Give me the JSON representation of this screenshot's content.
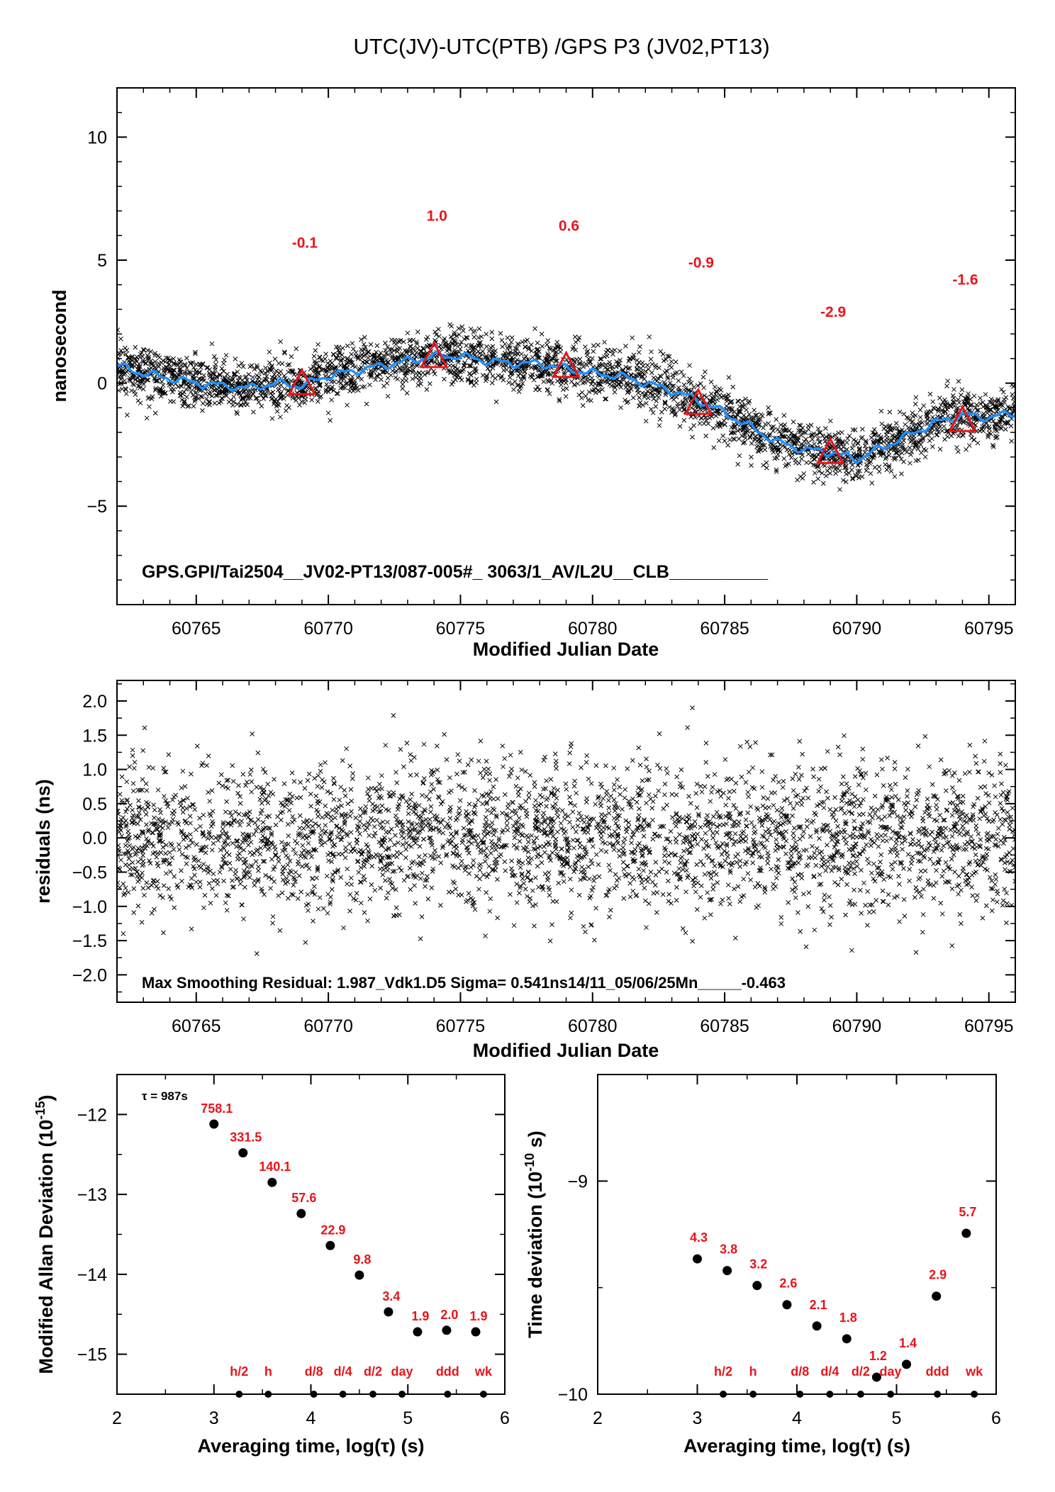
{
  "title": "UTC(JV)-UTC(PTB)  /GPS  P3  (JV02,PT13)",
  "chart_data": [
    {
      "id": "top",
      "type": "scatter",
      "ylabel": "nanosecond",
      "xlabel": "Modified Julian Date",
      "xlim": [
        60762,
        60796
      ],
      "ylim": [
        -9,
        12
      ],
      "xticks": [
        60765,
        60770,
        60775,
        60780,
        60785,
        60790,
        60795
      ],
      "yticks": [
        -5,
        0,
        5,
        10
      ],
      "annotation": "GPS.GPI/Tai2504__JV02-PT13/087-005#_  3063/1_AV/L2U__CLB__________",
      "scatter_color": "#000000",
      "smooth_color": "#1e90ff",
      "marker_color": "#e8141b",
      "smooth_curve": {
        "x": [
          60762,
          60763,
          60764,
          60765,
          60766,
          60767,
          60768,
          60769,
          60770,
          60771,
          60772,
          60773,
          60774,
          60775,
          60776,
          60777,
          60778,
          60779,
          60780,
          60781,
          60782,
          60783,
          60784,
          60785,
          60786,
          60787,
          60788,
          60789,
          60790,
          60791,
          60792,
          60793,
          60794,
          60795,
          60796
        ],
        "y": [
          0.7,
          0.4,
          0.2,
          0.0,
          -0.1,
          -0.2,
          0.0,
          -0.1,
          0.3,
          0.5,
          0.7,
          0.9,
          1.1,
          1.1,
          0.9,
          0.8,
          0.8,
          0.6,
          0.4,
          0.3,
          0.0,
          -0.3,
          -0.7,
          -1.2,
          -1.8,
          -2.4,
          -2.7,
          -2.8,
          -3.1,
          -2.6,
          -2.1,
          -1.6,
          -1.3,
          -1.4,
          -1.2
        ]
      },
      "markers": [
        {
          "x": 60769,
          "y": -0.1,
          "label": "-0.1"
        },
        {
          "x": 60774,
          "y": 1.0,
          "label": "1.0"
        },
        {
          "x": 60779,
          "y": 0.6,
          "label": "0.6"
        },
        {
          "x": 60784,
          "y": -0.9,
          "label": "-0.9"
        },
        {
          "x": 60789,
          "y": -2.9,
          "label": "-2.9"
        },
        {
          "x": 60794,
          "y": -1.6,
          "label": "-1.6"
        }
      ],
      "scatter_noise_sigma_ns": 0.54
    },
    {
      "id": "residuals",
      "type": "scatter",
      "ylabel": "residuals (ns)",
      "xlabel": "Modified Julian Date",
      "xlim": [
        60762,
        60796
      ],
      "ylim": [
        -2.4,
        2.3
      ],
      "xticks": [
        60765,
        60770,
        60775,
        60780,
        60785,
        60790,
        60795
      ],
      "yticks": [
        -2.0,
        -1.5,
        -1.0,
        -0.5,
        0.0,
        0.5,
        1.0,
        1.5,
        2.0
      ],
      "ytick_labels": [
        "−2.0",
        "−1.5",
        "−1.0",
        "−0.5",
        "0.0",
        "0.5",
        "1.0",
        "1.5",
        "2.0"
      ],
      "annotation": "Max Smoothing Residual: 1.987_Vdk1.D5  Sigma= 0.541ns14/11_05/06/25Mn_____-0.463",
      "sigma": 0.541
    },
    {
      "id": "mdev",
      "type": "scatter",
      "ylabel": "Modified Allan Deviation (10^-15)",
      "ylabel_main": "Modified Allan Deviation (10",
      "ylabel_sup": "-15",
      "ylabel_end": ")",
      "xlabel": "Averaging time, log(τ) (s)",
      "xlim": [
        2,
        6
      ],
      "ylim": [
        -15.5,
        -11.5
      ],
      "xticks": [
        2,
        3,
        4,
        5,
        6
      ],
      "yticks": [
        -15,
        -14,
        -13,
        -12
      ],
      "tau_note": "τ = 987s",
      "points": [
        {
          "x": 3.0,
          "y": -12.12,
          "label": "758.1"
        },
        {
          "x": 3.3,
          "y": -12.48,
          "label": "331.5"
        },
        {
          "x": 3.6,
          "y": -12.85,
          "label": "140.1"
        },
        {
          "x": 3.9,
          "y": -13.24,
          "label": "57.6"
        },
        {
          "x": 4.2,
          "y": -13.64,
          "label": "22.9"
        },
        {
          "x": 4.5,
          "y": -14.01,
          "label": "9.8"
        },
        {
          "x": 4.8,
          "y": -14.47,
          "label": "3.4"
        },
        {
          "x": 5.1,
          "y": -14.72,
          "label": "1.9"
        },
        {
          "x": 5.4,
          "y": -14.7,
          "label": "2.0"
        },
        {
          "x": 5.7,
          "y": -14.72,
          "label": "1.9"
        }
      ],
      "time_markers": [
        {
          "x": 3.26,
          "label": "h/2"
        },
        {
          "x": 3.56,
          "label": "h"
        },
        {
          "x": 4.03,
          "label": "d/8"
        },
        {
          "x": 4.33,
          "label": "d/4"
        },
        {
          "x": 4.64,
          "label": "d/2"
        },
        {
          "x": 4.94,
          "label": "day"
        },
        {
          "x": 5.41,
          "label": "ddd"
        },
        {
          "x": 5.78,
          "label": "wk"
        }
      ]
    },
    {
      "id": "tdev",
      "type": "scatter",
      "ylabel": "Time deviation (10^-10 s)",
      "ylabel_main": "Time deviation (10",
      "ylabel_sup": "-10",
      "ylabel_end": " s)",
      "xlabel": "Averaging time, log(τ) (s)",
      "xlim": [
        2,
        6
      ],
      "ylim": [
        -10,
        -8.5
      ],
      "xticks": [
        2,
        3,
        4,
        5,
        6
      ],
      "yticks": [
        -10,
        -9
      ],
      "ytick_labels": [
        "−10",
        "−9"
      ],
      "points": [
        {
          "x": 3.0,
          "y": -9.365,
          "label": "4.3"
        },
        {
          "x": 3.3,
          "y": -9.42,
          "label": "3.8"
        },
        {
          "x": 3.6,
          "y": -9.49,
          "label": "3.2"
        },
        {
          "x": 3.9,
          "y": -9.58,
          "label": "2.6"
        },
        {
          "x": 4.2,
          "y": -9.68,
          "label": "2.1"
        },
        {
          "x": 4.5,
          "y": -9.74,
          "label": "1.8"
        },
        {
          "x": 4.8,
          "y": -9.92,
          "label": "1.2"
        },
        {
          "x": 5.1,
          "y": -9.86,
          "label": "1.4"
        },
        {
          "x": 5.4,
          "y": -9.54,
          "label": "2.9"
        },
        {
          "x": 5.7,
          "y": -9.245,
          "label": "5.7"
        }
      ],
      "time_markers": [
        {
          "x": 3.26,
          "label": "h/2"
        },
        {
          "x": 3.56,
          "label": "h"
        },
        {
          "x": 4.03,
          "label": "d/8"
        },
        {
          "x": 4.33,
          "label": "d/4"
        },
        {
          "x": 4.64,
          "label": "d/2"
        },
        {
          "x": 4.94,
          "label": "day"
        },
        {
          "x": 5.41,
          "label": "ddd"
        },
        {
          "x": 5.78,
          "label": "wk"
        }
      ]
    }
  ]
}
